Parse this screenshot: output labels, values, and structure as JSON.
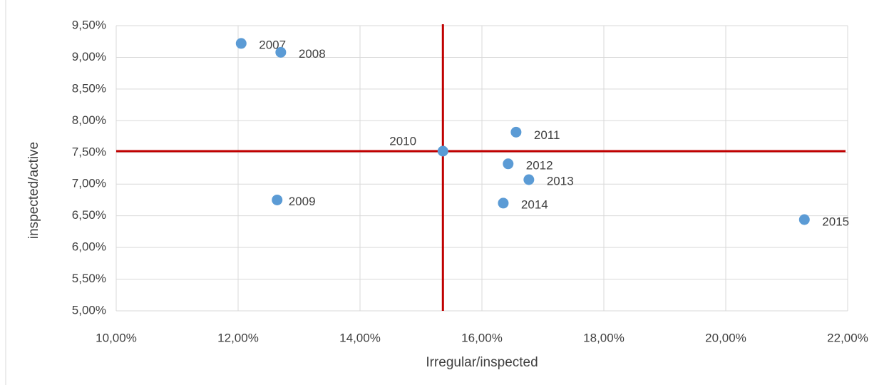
{
  "chart_data": {
    "type": "scatter",
    "x_label": "Irregular/inspected",
    "y_label": "inspected/active",
    "x": [
      12.05,
      12.7,
      12.64,
      15.36,
      16.56,
      16.43,
      16.77,
      16.35,
      21.29
    ],
    "values": [
      9.22,
      9.08,
      6.75,
      7.52,
      7.82,
      7.32,
      7.07,
      6.7,
      6.44
    ],
    "labels": [
      "2007",
      "2008",
      "2009",
      "2010",
      "2011",
      "2012",
      "2013",
      "2014",
      "2015"
    ],
    "color": "#5b9bd5",
    "xlim": [
      10,
      22
    ],
    "xticks": [
      {
        "value": 10,
        "label": "10,00%"
      },
      {
        "value": 12,
        "label": "12,00%"
      },
      {
        "value": 14,
        "label": "14,00%"
      },
      {
        "value": 16,
        "label": "16,00%"
      },
      {
        "value": 18,
        "label": "18,00%"
      },
      {
        "value": 20,
        "label": "20,00%"
      },
      {
        "value": 22,
        "label": "22,00%"
      }
    ],
    "ylim": [
      5,
      9.5
    ],
    "yticks": [
      {
        "value": 5,
        "label": "5,00%"
      },
      {
        "value": 5.5,
        "label": "5,50%"
      },
      {
        "value": 6,
        "label": "6,00%"
      },
      {
        "value": 6.5,
        "label": "6,50%"
      },
      {
        "value": 7,
        "label": "7,00%"
      },
      {
        "value": 7.5,
        "label": "7,50%"
      },
      {
        "value": 8,
        "label": "8,00%"
      },
      {
        "value": 8.5,
        "label": "8,50%"
      },
      {
        "value": 9,
        "label": "9,00%"
      },
      {
        "value": 9.5,
        "label": "9,50%"
      }
    ],
    "grid": true,
    "reference_lines": {
      "x": 15.36,
      "y": 7.52,
      "color": "#c00000"
    }
  }
}
